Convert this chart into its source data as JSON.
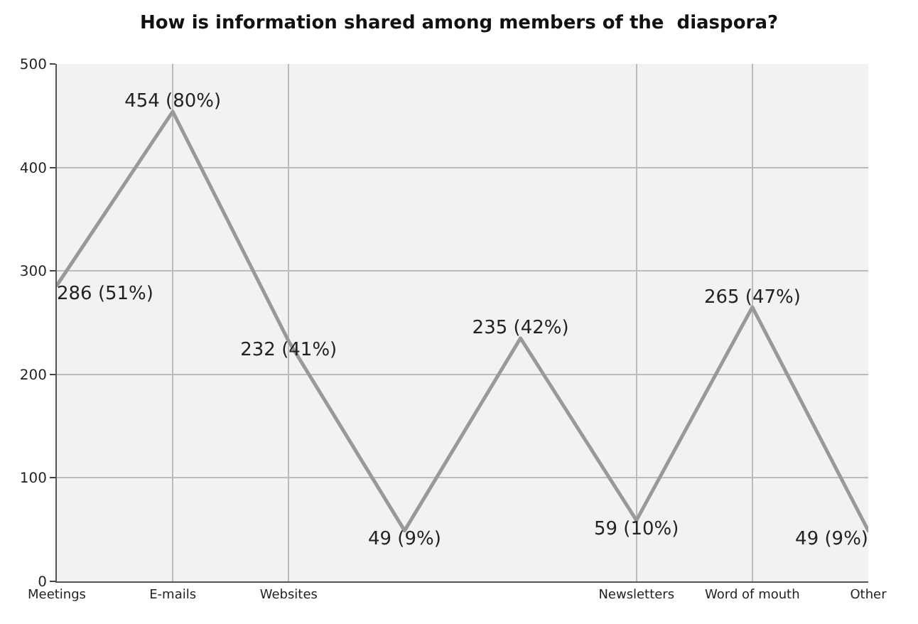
{
  "chart_data": {
    "type": "line",
    "title": "How is information shared among members of the  diaspora?",
    "categories": [
      "Meetings",
      "E-mails",
      "Websites",
      null,
      null,
      "Newsletters",
      "Word of mouth",
      "Other"
    ],
    "series": [
      {
        "color": "#999999",
        "values": [
          286,
          454,
          232,
          49,
          235,
          59,
          265,
          49
        ],
        "value_labels": [
          "286 (51%)",
          "454 (80%)",
          "232 (41%)",
          "49 (9%)",
          "235 (42%)",
          "59 (10%)",
          "265 (47%)",
          "49 (9%)"
        ]
      }
    ],
    "ylim": [
      0,
      500
    ],
    "yticks": [
      0,
      100,
      200,
      300,
      400,
      500
    ],
    "grid": true,
    "marker": "none",
    "line_style": "solid"
  }
}
